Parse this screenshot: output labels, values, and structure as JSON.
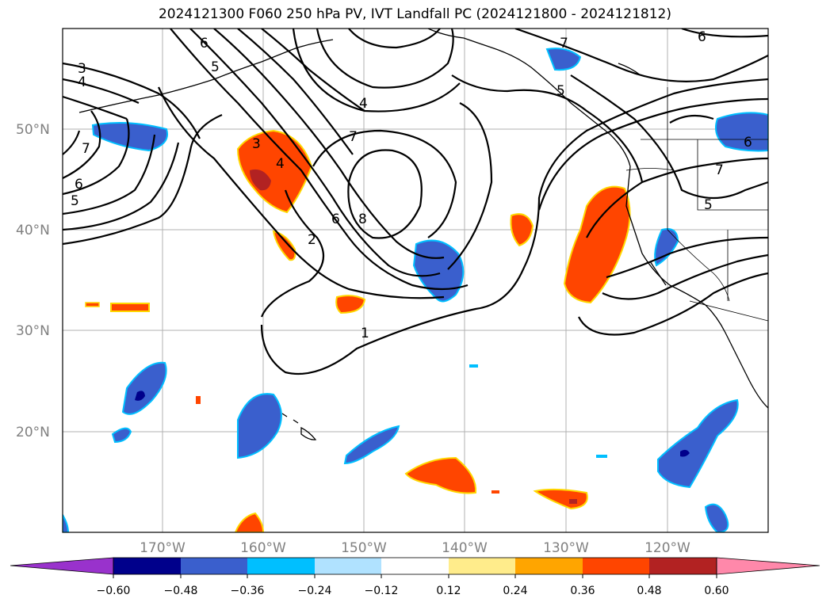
{
  "title": "2024121300 F060 250 hPa PV, IVT Landfall PC (2024121800 - 2024121812)",
  "lat_labels": [
    "50°N",
    "40°N",
    "30°N",
    "20°N"
  ],
  "lon_labels": [
    "170°W",
    "160°W",
    "150°W",
    "140°W",
    "130°W",
    "120°W"
  ],
  "contour_labels": [
    "3",
    "4",
    "6",
    "5",
    "7",
    "6",
    "5",
    "4",
    "7",
    "8",
    "6",
    "2",
    "1",
    "6",
    "6",
    "7",
    "5",
    "3",
    "4",
    "5",
    "7"
  ],
  "colorbar": {
    "ticks": [
      "−0.60",
      "−0.48",
      "−0.36",
      "−0.24",
      "−0.12",
      "0.12",
      "0.24",
      "0.36",
      "0.48",
      "0.60"
    ],
    "colors": [
      "#9932cc",
      "#00008b",
      "#3a5fcd",
      "#00bfff",
      "#b0e2ff",
      "#ffffff",
      "#ffec8b",
      "#ffa500",
      "#ff4500",
      "#b22222",
      "#ff88aa"
    ]
  },
  "colors": {
    "neg_main": "#3a5fcd",
    "neg_edge": "#00bfff",
    "neg_strong": "#00008b",
    "pos_main": "#ff4500",
    "pos_edge": "#ffd700",
    "pos_strong": "#b22222"
  }
}
